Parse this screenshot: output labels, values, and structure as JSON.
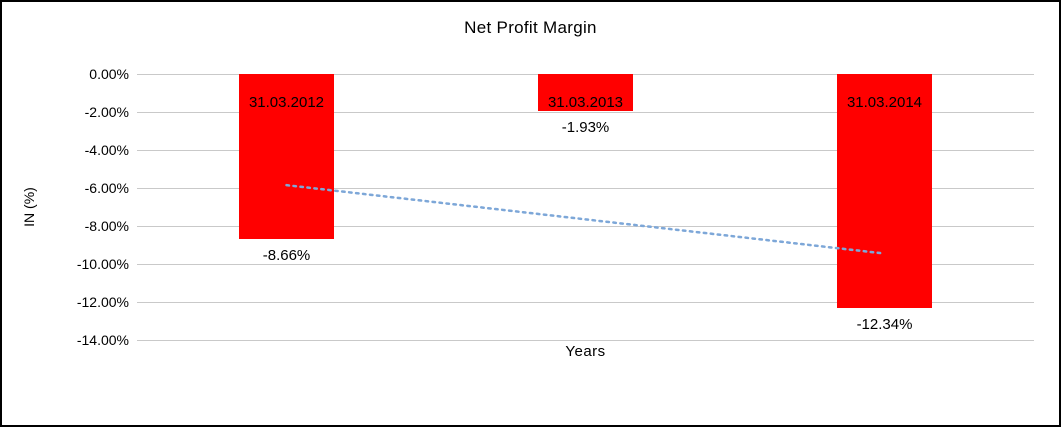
{
  "chart_data": {
    "type": "bar",
    "title": "Net Profit Margin",
    "xlabel": "Years",
    "ylabel": "IN (%)",
    "categories": [
      "31.03.2012",
      "31.03.2013",
      "31.03.2014"
    ],
    "values": [
      -8.66,
      -1.93,
      -12.34
    ],
    "data_labels": [
      "-8.66%",
      "-1.93%",
      "-12.34%"
    ],
    "y_ticks": [
      {
        "label": "0.00%",
        "value": 0
      },
      {
        "label": "-2.00%",
        "value": -2
      },
      {
        "label": "-4.00%",
        "value": -4
      },
      {
        "label": "-6.00%",
        "value": -6
      },
      {
        "label": "-8.00%",
        "value": -8
      },
      {
        "label": "-10.00%",
        "value": -10
      },
      {
        "label": "-12.00%",
        "value": -12
      },
      {
        "label": "-14.00%",
        "value": -14
      }
    ],
    "ylim": [
      -14,
      0
    ],
    "grid": true,
    "legend": false,
    "bar_color": "#ff0000",
    "trendline": {
      "type": "linear",
      "style": "dotted",
      "color": "#7da7d8",
      "start_value": -5.85,
      "end_value": -9.45
    }
  }
}
